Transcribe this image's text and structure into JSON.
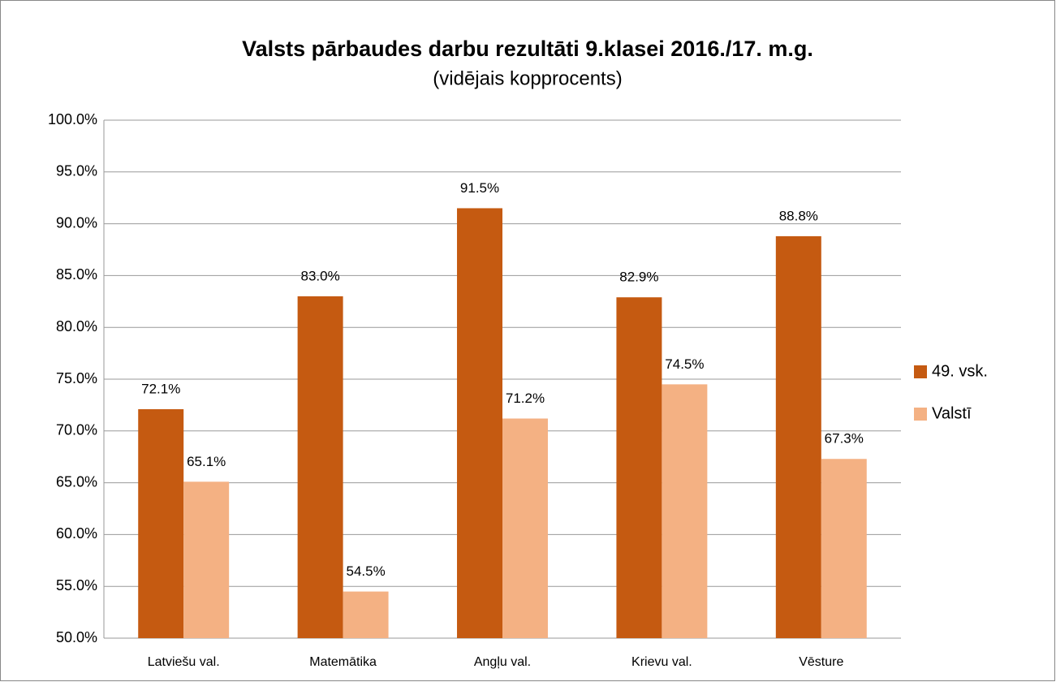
{
  "chart_data": {
    "type": "bar",
    "title": "Valsts pārbaudes darbu rezultāti 9.klasei 2016./17. m.g.",
    "subtitle": "(vidējais kopprocents)",
    "categories": [
      "Latviešu val.",
      "Matemātika",
      "Angļu val.",
      "Krievu val.",
      "Vēsture"
    ],
    "series": [
      {
        "name": "49. vsk.",
        "color": "#c55a11",
        "values": [
          72.1,
          83.0,
          91.5,
          82.9,
          88.8
        ],
        "value_labels": [
          "72.1%",
          "83.0%",
          "91.5%",
          "82.9%",
          "88.8%"
        ]
      },
      {
        "name": "Valstī",
        "color": "#f4b183",
        "values": [
          65.1,
          54.5,
          71.2,
          74.5,
          67.3
        ],
        "value_labels": [
          "65.1%",
          "54.5%",
          "71.2%",
          "74.5%",
          "67.3%"
        ]
      }
    ],
    "ylim": [
      50,
      100
    ],
    "yticks": [
      {
        "value": 50,
        "label": "50.0%"
      },
      {
        "value": 55,
        "label": "55.0%"
      },
      {
        "value": 60,
        "label": "60.0%"
      },
      {
        "value": 65,
        "label": "65.0%"
      },
      {
        "value": 70,
        "label": "70.0%"
      },
      {
        "value": 75,
        "label": "75.0%"
      },
      {
        "value": 80,
        "label": "80.0%"
      },
      {
        "value": 85,
        "label": "85.0%"
      },
      {
        "value": 90,
        "label": "90.0%"
      },
      {
        "value": 95,
        "label": "95.0%"
      },
      {
        "value": 100,
        "label": "100.0%"
      }
    ],
    "grid": true,
    "legend": "right"
  }
}
